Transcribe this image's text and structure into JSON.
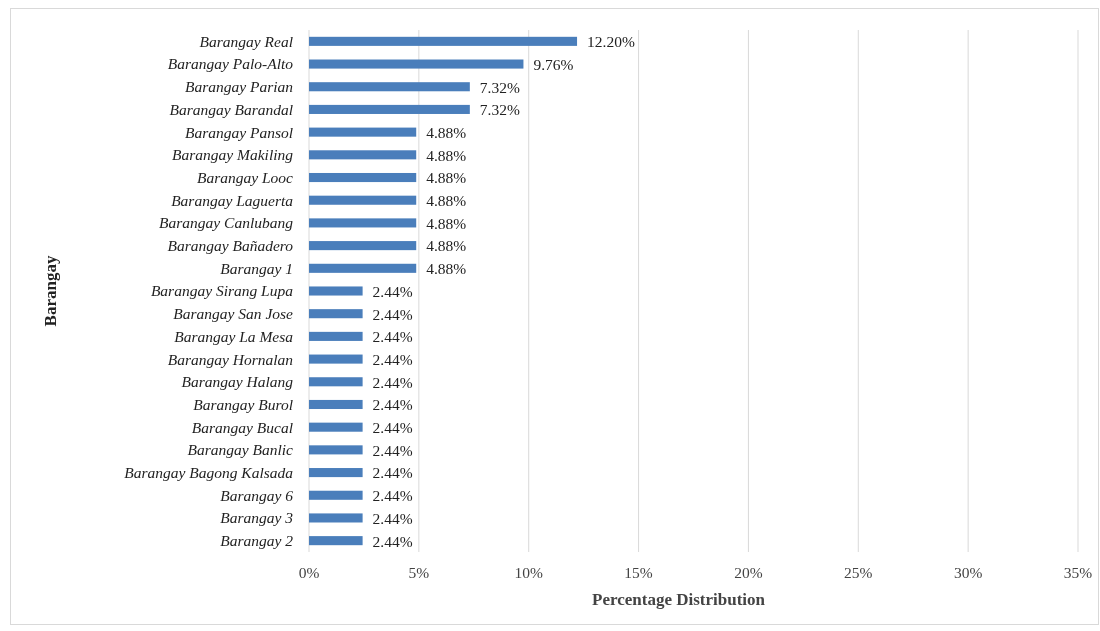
{
  "chart_data": {
    "type": "bar",
    "orientation": "horizontal",
    "xlabel": "Percentage Distribution",
    "ylabel": "Barangay",
    "categories": [
      "Barangay Real",
      "Barangay Palo-Alto",
      "Barangay Parian",
      "Barangay Barandal",
      "Barangay Pansol",
      "Barangay Makiling",
      "Barangay Looc",
      "Barangay Laguerta",
      "Barangay Canlubang",
      "Barangay Bañadero",
      "Barangay 1",
      "Barangay Sirang Lupa",
      "Barangay San Jose",
      "Barangay La Mesa",
      "Barangay Hornalan",
      "Barangay Halang",
      "Barangay Burol",
      "Barangay Bucal",
      "Barangay Banlic",
      "Barangay Bagong Kalsada",
      "Barangay 6",
      "Barangay 3",
      "Barangay 2"
    ],
    "values": [
      12.2,
      9.76,
      7.32,
      7.32,
      4.88,
      4.88,
      4.88,
      4.88,
      4.88,
      4.88,
      4.88,
      2.44,
      2.44,
      2.44,
      2.44,
      2.44,
      2.44,
      2.44,
      2.44,
      2.44,
      2.44,
      2.44,
      2.44
    ],
    "value_labels": [
      "12.20%",
      "9.76%",
      "7.32%",
      "7.32%",
      "4.88%",
      "4.88%",
      "4.88%",
      "4.88%",
      "4.88%",
      "4.88%",
      "4.88%",
      "2.44%",
      "2.44%",
      "2.44%",
      "2.44%",
      "2.44%",
      "2.44%",
      "2.44%",
      "2.44%",
      "2.44%",
      "2.44%",
      "2.44%",
      "2.44%"
    ],
    "color": "#4a7ebb",
    "xlim": [
      0,
      35
    ],
    "xticks": [
      {
        "value": 0,
        "label": "0%"
      },
      {
        "value": 5,
        "label": "5%"
      },
      {
        "value": 10,
        "label": "10%"
      },
      {
        "value": 15,
        "label": "15%"
      },
      {
        "value": 20,
        "label": "20%"
      },
      {
        "value": 25,
        "label": "25%"
      },
      {
        "value": 30,
        "label": "30%"
      },
      {
        "value": 35,
        "label": "35%"
      }
    ],
    "grid": "x"
  }
}
